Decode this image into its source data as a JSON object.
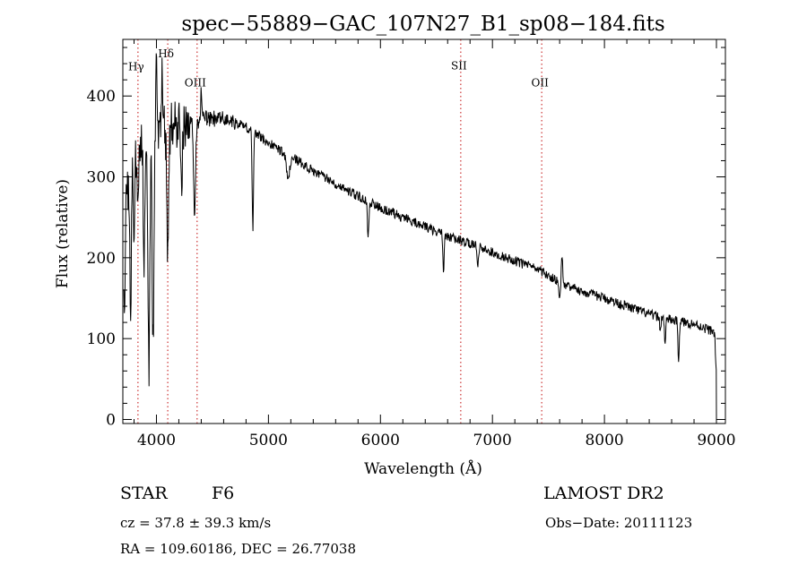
{
  "chart_data": {
    "type": "line",
    "title": "spec−55889−GAC_107N27_B1_sp08−184.fits",
    "xlabel": "Wavelength (Å)",
    "ylabel": "Flux (relative)",
    "xlim": [
      3700,
      9080
    ],
    "ylim": [
      -5,
      470
    ],
    "xticks": [
      {
        "value": 4000,
        "label": "4000"
      },
      {
        "value": 5000,
        "label": "5000"
      },
      {
        "value": 6000,
        "label": "6000"
      },
      {
        "value": 7000,
        "label": "7000"
      },
      {
        "value": 8000,
        "label": "8000"
      },
      {
        "value": 9000,
        "label": "9000"
      }
    ],
    "yticks": [
      {
        "value": 0,
        "label": "0"
      },
      {
        "value": 100,
        "label": "100"
      },
      {
        "value": 200,
        "label": "200"
      },
      {
        "value": 300,
        "label": "300"
      },
      {
        "value": 400,
        "label": "400"
      }
    ],
    "line_color": "#000000",
    "marker_color": "#cc3333",
    "lines": [
      {
        "label": "Hγ",
        "wavelength": 3835,
        "label_flux": 432
      },
      {
        "label": "Hδ",
        "wavelength": 4101,
        "label_flux": 448
      },
      {
        "label": "OIII",
        "wavelength": 4363,
        "label_flux": 412
      },
      {
        "label": "SII",
        "wavelength": 6717,
        "label_flux": 433
      },
      {
        "label": "OII",
        "wavelength": 7440,
        "label_flux": 412
      }
    ],
    "continuum": [
      [
        3710,
        260
      ],
      [
        3760,
        300
      ],
      [
        3820,
        330
      ],
      [
        3900,
        345
      ],
      [
        4000,
        355
      ],
      [
        4100,
        360
      ],
      [
        4200,
        365
      ],
      [
        4300,
        368
      ],
      [
        4450,
        372
      ],
      [
        4600,
        372
      ],
      [
        4800,
        362
      ],
      [
        5000,
        342
      ],
      [
        5200,
        325
      ],
      [
        5400,
        308
      ],
      [
        5600,
        292
      ],
      [
        5800,
        276
      ],
      [
        6000,
        262
      ],
      [
        6200,
        250
      ],
      [
        6400,
        238
      ],
      [
        6600,
        227
      ],
      [
        6800,
        217
      ],
      [
        7000,
        207
      ],
      [
        7200,
        196
      ],
      [
        7400,
        186
      ],
      [
        7600,
        170
      ],
      [
        7800,
        158
      ],
      [
        8000,
        150
      ],
      [
        8200,
        140
      ],
      [
        8400,
        130
      ],
      [
        8600,
        123
      ],
      [
        8800,
        118
      ],
      [
        8990,
        108
      ]
    ],
    "features": [
      [
        3715,
        150,
        5
      ],
      [
        3770,
        160,
        7
      ],
      [
        3800,
        85,
        6
      ],
      [
        3835,
        60,
        7
      ],
      [
        3889,
        155,
        6
      ],
      [
        3933,
        280,
        8
      ],
      [
        3970,
        260,
        8
      ],
      [
        4101,
        150,
        8
      ],
      [
        4226,
        60,
        8
      ],
      [
        4340,
        115,
        9
      ],
      [
        4861,
        120,
        6
      ],
      [
        5175,
        30,
        15
      ],
      [
        5890,
        50,
        6
      ],
      [
        6563,
        50,
        5
      ],
      [
        6870,
        20,
        7
      ],
      [
        7600,
        15,
        10
      ],
      [
        8498,
        20,
        5
      ],
      [
        8542,
        35,
        5
      ],
      [
        8662,
        45,
        6
      ],
      [
        9000,
        50,
        8
      ]
    ],
    "emission": [
      [
        4000,
        80,
        6
      ],
      [
        4050,
        60,
        5
      ],
      [
        4400,
        35,
        5
      ],
      [
        7620,
        40,
        6
      ]
    ],
    "end_drop": [
      9000,
      4
    ]
  },
  "footer": {
    "class_label": "STAR",
    "subclass": "F6",
    "survey": "LAMOST DR2",
    "cz": "cz = 37.8 ± 39.3 km/s",
    "obs_date": "Obs−Date: 20111123",
    "coords": "RA = 109.60186, DEC =  26.77038"
  }
}
